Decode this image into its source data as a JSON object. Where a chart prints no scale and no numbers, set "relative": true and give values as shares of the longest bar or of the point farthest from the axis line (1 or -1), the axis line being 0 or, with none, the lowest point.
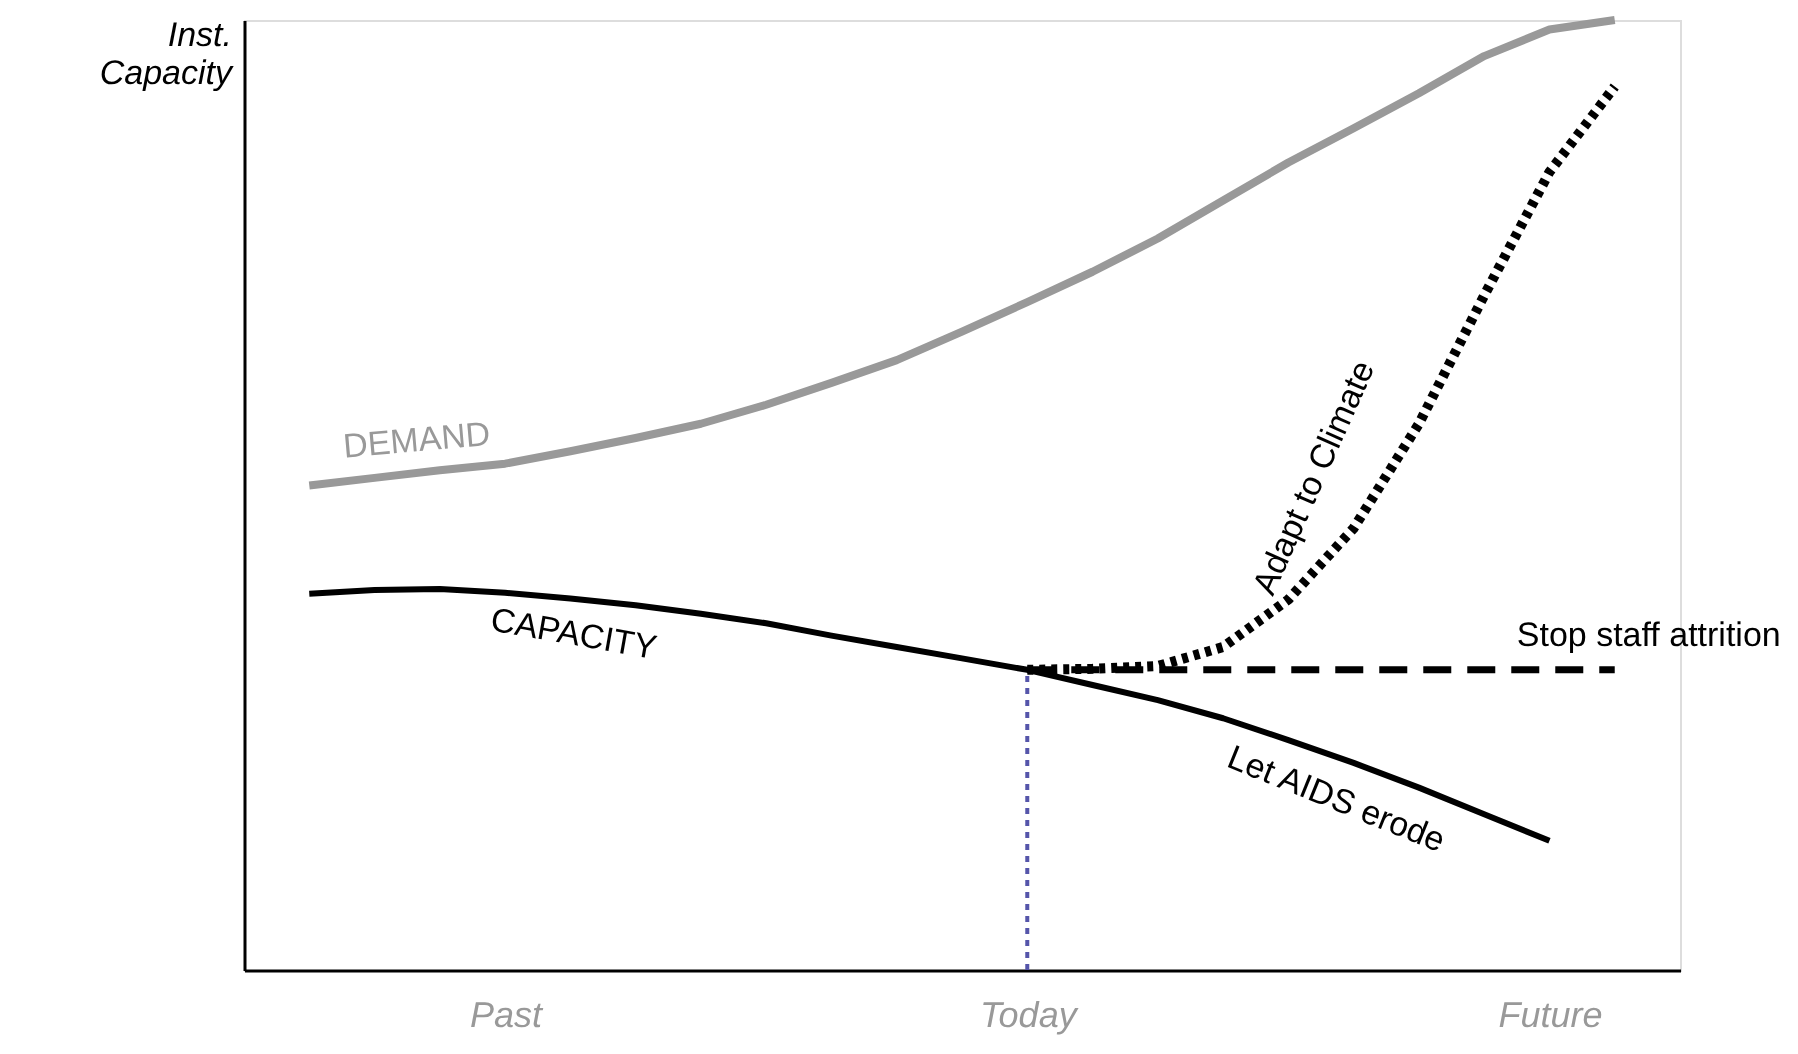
{
  "chart_data": {
    "type": "line",
    "relative": true,
    "ylabel": "Inst. Capacity",
    "grid": false,
    "marker": "none",
    "categories": [
      null,
      null,
      null,
      "Past",
      null,
      null,
      null,
      null,
      null,
      null,
      null,
      "Today",
      null,
      null,
      null,
      null,
      null,
      null,
      null,
      "Future",
      null
    ],
    "annotations": [
      "Let AIDS erode"
    ],
    "ref_lines": [
      {
        "axis": "x",
        "value": "Today",
        "color": "#5555aa",
        "line_style": "dotted"
      }
    ],
    "series": [
      {
        "name": "DEMAND",
        "color": "#999999",
        "line_style": "solid",
        "values": [
          0.51,
          0.518,
          0.526,
          0.533,
          0.546,
          0.56,
          0.575,
          0.595,
          0.618,
          0.642,
          0.672,
          0.703,
          0.735,
          0.77,
          0.81,
          0.85,
          0.886,
          0.923,
          0.962,
          0.99,
          1.0
        ]
      },
      {
        "name": "CAPACITY",
        "color": "#000000",
        "line_style": "solid",
        "values": [
          0.396,
          0.4,
          0.401,
          0.397,
          0.391,
          0.384,
          0.375,
          0.365,
          0.352,
          0.34,
          0.328,
          0.316,
          0.3,
          0.284,
          0.265,
          0.242,
          0.218,
          0.192,
          0.164,
          0.136,
          null
        ]
      },
      {
        "name": "Stop staff attrition",
        "color": "#000000",
        "line_style": "dashed",
        "values": [
          null,
          null,
          null,
          null,
          null,
          null,
          null,
          null,
          null,
          null,
          null,
          0.316,
          0.316,
          0.316,
          0.316,
          0.316,
          0.316,
          0.316,
          0.316,
          0.316,
          0.316
        ]
      },
      {
        "name": "Adapt to Climate",
        "color": "#000000",
        "line_style": "dotted",
        "values": [
          null,
          null,
          null,
          null,
          null,
          null,
          null,
          null,
          null,
          null,
          null,
          0.316,
          0.317,
          0.32,
          0.34,
          0.39,
          0.465,
          0.575,
          0.71,
          0.84,
          0.93
        ]
      }
    ]
  }
}
